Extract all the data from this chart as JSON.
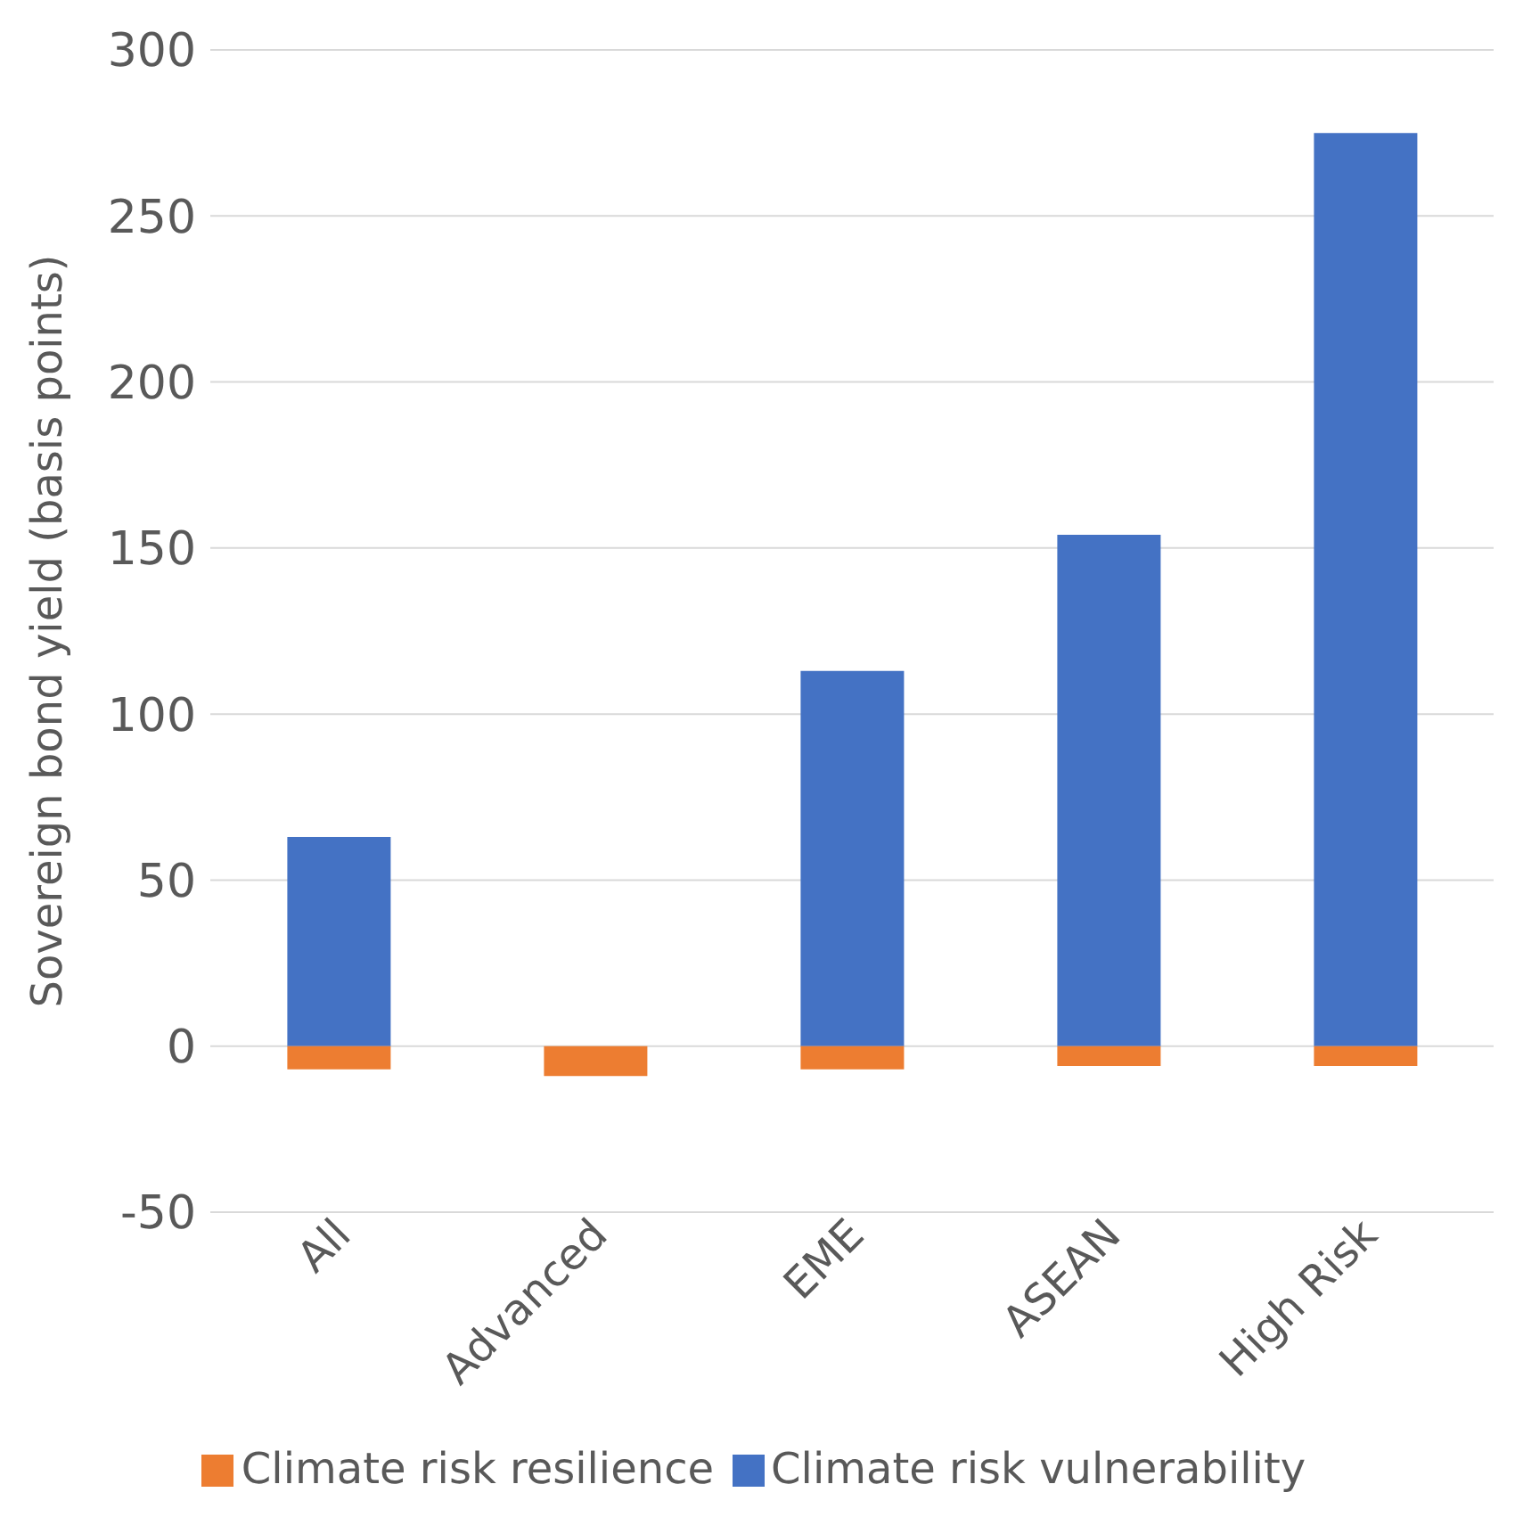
{
  "chart_data": {
    "type": "bar",
    "stacked": true,
    "categories": [
      "All",
      "Advanced",
      "EME",
      "ASEAN",
      "High Risk"
    ],
    "ylabel": "Sovereign bond yield (basis points)",
    "series": [
      {
        "name": "Climate risk vulnerability",
        "color": "#4472c4",
        "values": [
          63,
          null,
          113,
          154,
          275
        ]
      },
      {
        "name": "Climate risk resilience",
        "color": "#ed7d31",
        "values": [
          -7,
          -9,
          -7,
          -6,
          -6
        ]
      }
    ],
    "ylim": [
      -50,
      300
    ],
    "yticks": [
      -50,
      0,
      50,
      100,
      150,
      200,
      250,
      300
    ],
    "grid": "y",
    "legend": "bottom"
  }
}
